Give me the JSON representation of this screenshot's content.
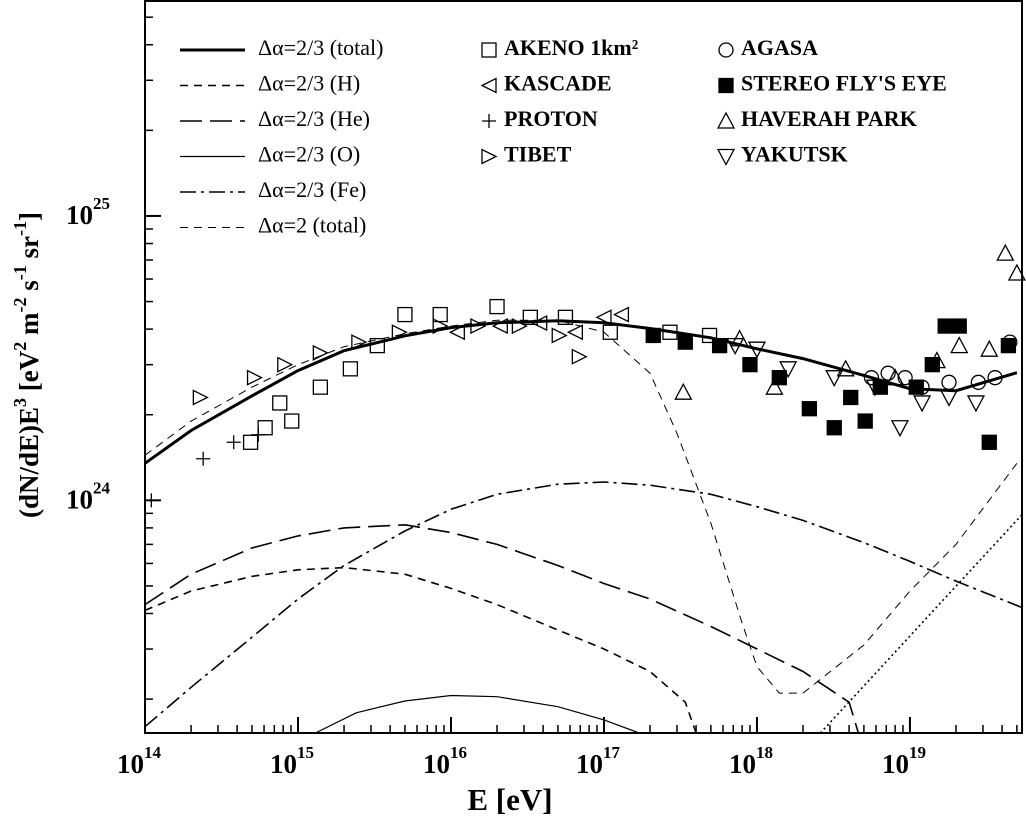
{
  "chart_data": {
    "type": "scatter",
    "xlabel": "E [eV]",
    "ylabel": [
      "(dN/dE)E",
      "3",
      " [eV",
      "2",
      " m",
      "-2",
      " s",
      "-1",
      " sr",
      "-1",
      "]"
    ],
    "xscale": "log",
    "yscale": "log",
    "xlim": [
      100000000000000.0,
      5.4e+19
    ],
    "ylim": [
      1.52e+23,
      5.7e+25
    ],
    "xticks": [
      {
        "value": 100000000000000.0,
        "label": "10",
        "exponent": "14"
      },
      {
        "value": 1000000000000000.0,
        "label": "10",
        "exponent": "15"
      },
      {
        "value": 1e+16,
        "label": "10",
        "exponent": "16"
      },
      {
        "value": 1e+17,
        "label": "10",
        "exponent": "17"
      },
      {
        "value": 1e+18,
        "label": "10",
        "exponent": "18"
      },
      {
        "value": 1e+19,
        "label": "10",
        "exponent": "19"
      }
    ],
    "yticks": [
      {
        "value": 1e+24,
        "label": "10",
        "exponent": "24"
      },
      {
        "value": 1e+25,
        "label": "10",
        "exponent": "25"
      }
    ],
    "xminorticks": [
      200000000000000.0,
      300000000000000.0,
      400000000000000.0,
      500000000000000.0,
      600000000000000.0,
      700000000000000.0,
      800000000000000.0,
      900000000000000.0,
      2000000000000000.0,
      3000000000000000.0,
      4000000000000000.0,
      5000000000000000.0,
      6000000000000000.0,
      7000000000000000.0,
      8000000000000000.0,
      9000000000000000.0,
      2e+16,
      3e+16,
      4e+16,
      5e+16,
      6e+16,
      7e+16,
      8e+16,
      9e+16,
      2e+17,
      3e+17,
      4e+17,
      5e+17,
      6e+17,
      7e+17,
      8e+17,
      9e+17,
      2e+18,
      3e+18,
      4e+18,
      5e+18,
      6e+18,
      7e+18,
      8e+18,
      9e+18,
      2e+19,
      3e+19,
      4e+19,
      5e+19
    ],
    "yminorticks": [
      2e+23,
      3e+23,
      4e+23,
      5e+23,
      6e+23,
      7e+23,
      8e+23,
      9e+23,
      2e+24,
      3e+24,
      4e+24,
      5e+24,
      6e+24,
      7e+24,
      8e+24,
      9e+24,
      2e+25,
      3e+25,
      4e+25,
      5e+25
    ],
    "lines": [
      {
        "name": "Δα=2/3 (total)",
        "linestyle": "solid-thick",
        "x": [
          100000000000000.0,
          200000000000000.0,
          500000000000000.0,
          1000000000000000.0,
          2000000000000000.0,
          5000000000000000.0,
          1e+16,
          2e+16,
          5e+16,
          1e+17,
          2e+17,
          5e+17,
          1e+18,
          2e+18,
          5e+18,
          1e+19,
          2e+19,
          5e+19
        ],
        "values": [
          1.35e+24,
          1.76e+24,
          2.33e+24,
          2.86e+24,
          3.36e+24,
          3.79e+24,
          4.05e+24,
          4.21e+24,
          4.28e+24,
          4.21e+24,
          4.02e+24,
          3.73e+24,
          3.41e+24,
          3.15e+24,
          2.75e+24,
          2.47e+24,
          2.43e+24,
          2.81e+24
        ]
      },
      {
        "name": "Δα=2/3 (H)",
        "linestyle": "short-dash",
        "x": [
          100000000000000.0,
          200000000000000.0,
          500000000000000.0,
          1000000000000000.0,
          2000000000000000.0,
          5000000000000000.0,
          1e+16,
          2e+16,
          5e+16,
          1e+17,
          2e+17,
          3.4e+17,
          4e+17
        ],
        "values": [
          4.1e+23,
          4.8e+23,
          5.4e+23,
          5.7e+23,
          5.8e+23,
          5.5e+23,
          4.9e+23,
          4.3e+23,
          3.5e+23,
          3e+23,
          2.5e+23,
          1.95e+23,
          1.52e+23
        ]
      },
      {
        "name": "Δα=2/3 (He)",
        "linestyle": "long-dash",
        "x": [
          100000000000000.0,
          200000000000000.0,
          500000000000000.0,
          1000000000000000.0,
          2000000000000000.0,
          5000000000000000.0,
          1e+16,
          2e+16,
          5e+16,
          1e+17,
          2e+17,
          5e+17,
          1e+18,
          2e+18,
          4e+18,
          4.6e+18
        ],
        "values": [
          4.3e+23,
          5.5e+23,
          6.8e+23,
          7.5e+23,
          8e+23,
          8.2e+23,
          7.7e+23,
          7e+23,
          5.9e+23,
          5.1e+23,
          4.5e+23,
          3.6e+23,
          3e+23,
          2.5e+23,
          1.95e+23,
          1.52e+23
        ]
      },
      {
        "name": "Δα=2/3 (O)",
        "linestyle": "solid-thin",
        "x": [
          1300000000000000.0,
          2400000000000000.0,
          5000000000000000.0,
          1e+16,
          2e+16,
          5e+16,
          1e+17,
          1.7e+17
        ],
        "values": [
          1.52e+23,
          1.79e+23,
          1.97e+23,
          2.06e+23,
          2.04e+23,
          1.88e+23,
          1.69e+23,
          1.52e+23
        ]
      },
      {
        "name": "Δα=2/3 (Fe)",
        "linestyle": "dash-dot",
        "x": [
          100000000000000.0,
          200000000000000.0,
          500000000000000.0,
          1000000000000000.0,
          2000000000000000.0,
          5000000000000000.0,
          1e+16,
          2e+16,
          5e+16,
          1e+17,
          2e+17,
          5e+17,
          1e+18,
          2e+18,
          5e+18,
          1e+19,
          2e+19,
          5.4e+19
        ],
        "values": [
          1.6e+23,
          2.2e+23,
          3.3e+23,
          4.5e+23,
          5.9e+23,
          7.8e+23,
          9.3e+23,
          1.05e+24,
          1.14e+24,
          1.16e+24,
          1.13e+24,
          1.05e+24,
          9.5e+23,
          8.5e+23,
          7.1e+23,
          6.1e+23,
          5.2e+23,
          4.2e+23
        ]
      },
      {
        "name": "Δα=2 (total)",
        "linestyle": "thin-dash",
        "x": [
          100000000000000.0,
          200000000000000.0,
          500000000000000.0,
          1000000000000000.0,
          2000000000000000.0,
          5000000000000000.0,
          1e+16,
          2e+16,
          5e+16,
          1e+17,
          2e+17,
          3e+17,
          5e+17,
          8e+17,
          1e+18,
          1.4e+18,
          2e+18,
          5e+18,
          1e+19,
          2e+19,
          5e+19
        ],
        "values": [
          1.44e+24,
          1.9e+24,
          2.5e+24,
          3e+24,
          3.47e+24,
          3.85e+24,
          4.1e+24,
          4.3e+24,
          4.3e+24,
          3.9e+24,
          2.8e+24,
          1.72e+24,
          8.3e+23,
          3.7e+23,
          2.6e+23,
          2.1e+23,
          2.1e+23,
          3.1e+23,
          4.8e+23,
          7e+23,
          1.35e+24
        ]
      },
      {
        "linestyle": "dotted",
        "x": [
          2.6e+18,
          5.4e+19
        ],
        "values": [
          1.52e+23,
          8.9e+23
        ]
      }
    ],
    "series": [
      {
        "name": "AKENO 1km²",
        "marker": "square-open",
        "x": [
          490000000000000.0,
          610000000000000.0,
          760000000000000.0,
          910000000000000.0,
          1400000000000000.0,
          2200000000000000.0,
          3300000000000000.0,
          5000000000000000.0,
          8500000000000000.0,
          2e+16,
          3.3e+16,
          5.6e+16,
          1.1e+17,
          2.7e+17,
          4.9e+17
        ],
        "values": [
          1.6e+24,
          1.8e+24,
          2.2e+24,
          1.9e+24,
          2.5e+24,
          2.9e+24,
          3.5e+24,
          4.5e+24,
          4.5e+24,
          4.8e+24,
          4.4e+24,
          4.4e+24,
          3.9e+24,
          3.9e+24,
          3.8e+24
        ]
      },
      {
        "name": "KASCADE",
        "marker": "triangle-left",
        "x": [
          1.1e+16,
          2.1e+16,
          3.8e+16,
          6.5e+16,
          1e+17,
          1.3e+17
        ],
        "values": [
          3.9e+24,
          4.1e+24,
          4.2e+24,
          3.9e+24,
          4.4e+24,
          4.5e+24
        ]
      },
      {
        "name": "PROTON",
        "marker": "plus",
        "x": [
          110000000000000.0,
          240000000000000.0,
          380000000000000.0,
          550000000000000.0
        ],
        "values": [
          1e+24,
          1.4e+24,
          1.6e+24,
          1.7e+24
        ]
      },
      {
        "name": "TIBET",
        "marker": "triangle-right",
        "x": [
          230000000000000.0,
          520000000000000.0,
          820000000000000.0,
          1400000000000000.0,
          2500000000000000.0,
          4600000000000000.0,
          8500000000000000.0,
          1.5e+16,
          2.8e+16,
          5.1e+16,
          6.9e+16
        ],
        "values": [
          2.3e+24,
          2.7e+24,
          3e+24,
          3.3e+24,
          3.6e+24,
          3.9e+24,
          4.1e+24,
          4.1e+24,
          4.1e+24,
          3.8e+24,
          3.2e+24
        ]
      },
      {
        "name": "AGASA",
        "marker": "circle",
        "x": [
          5.6e+18,
          7.2e+18,
          9.3e+18,
          1.2e+19,
          1.8e+19,
          2.8e+19,
          3.6e+19,
          4.5e+19
        ],
        "values": [
          2.7e+24,
          2.8e+24,
          2.7e+24,
          2.5e+24,
          2.6e+24,
          2.6e+24,
          2.7e+24,
          3.6e+24
        ]
      },
      {
        "name": "STEREO FLY'S EYE",
        "marker": "square-filled",
        "x": [
          2.1e+17,
          3.4e+17,
          5.7e+17,
          9e+17,
          1.4e+18,
          2.2e+18,
          3.2e+18,
          4.1e+18,
          5.1e+18,
          6.4e+18,
          1.1e+19,
          1.4e+19,
          1.7e+19,
          2.1e+19,
          3.3e+19,
          4.4e+19
        ],
        "values": [
          3.8e+24,
          3.6e+24,
          3.5e+24,
          3e+24,
          2.7e+24,
          2.1e+24,
          1.8e+24,
          2.3e+24,
          1.9e+24,
          2.5e+24,
          2.5e+24,
          3e+24,
          4.1e+24,
          4.1e+24,
          1.6e+24,
          3.5e+24
        ]
      },
      {
        "name": "HAVERAH PARK",
        "marker": "triangle-up",
        "x": [
          3.3e+17,
          7.7e+17,
          1.3e+18,
          3.8e+18,
          8e+18,
          1.5e+19,
          2.1e+19,
          3.3e+19,
          4.2e+19,
          5e+19
        ],
        "values": [
          2.4e+24,
          3.7e+24,
          2.5e+24,
          2.9e+24,
          2.7e+24,
          3.1e+24,
          3.5e+24,
          3.4e+24,
          7.4e+24,
          6.3e+24
        ]
      },
      {
        "name": "YAKUTSK",
        "marker": "triangle-down",
        "x": [
          7.2e+17,
          1e+18,
          1.6e+18,
          3.2e+18,
          5.9e+18,
          8.6e+18,
          1.2e+19,
          1.8e+19,
          2.7e+19
        ],
        "values": [
          3.5e+24,
          3.4e+24,
          2.9e+24,
          2.7e+24,
          2.5e+24,
          1.8e+24,
          2.2e+24,
          2.3e+24,
          2.2e+24
        ]
      }
    ]
  }
}
